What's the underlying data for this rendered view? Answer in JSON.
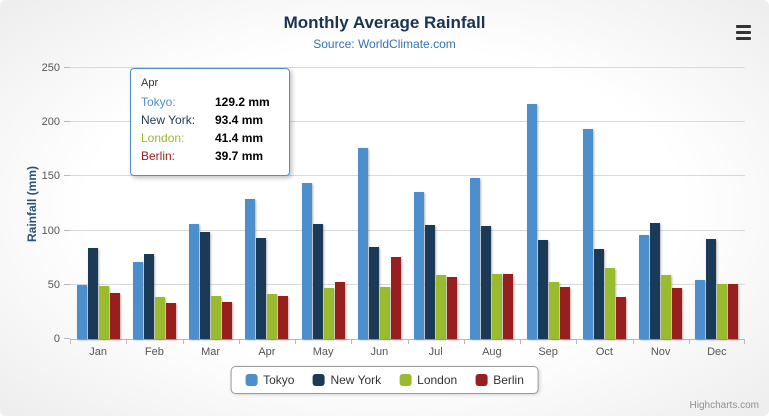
{
  "header": {
    "title": "Monthly Average Rainfall",
    "subtitle": "Source: WorldClimate.com"
  },
  "chart_data": {
    "type": "bar",
    "title": "Monthly Average Rainfall",
    "subtitle": "Source: WorldClimate.com",
    "categories": [
      "Jan",
      "Feb",
      "Mar",
      "Apr",
      "May",
      "Jun",
      "Jul",
      "Aug",
      "Sep",
      "Oct",
      "Nov",
      "Dec"
    ],
    "series": [
      {
        "name": "Tokyo",
        "color": "#4d8fcc",
        "values": [
          49.9,
          71.5,
          106.4,
          129.2,
          144.0,
          176.0,
          135.6,
          148.5,
          216.4,
          194.1,
          95.6,
          54.4
        ]
      },
      {
        "name": "New York",
        "color": "#1b3a57",
        "values": [
          83.6,
          78.8,
          98.5,
          93.4,
          106.0,
          84.5,
          105.0,
          104.3,
          91.2,
          83.5,
          106.6,
          92.3
        ]
      },
      {
        "name": "London",
        "color": "#9bbb2e",
        "values": [
          48.9,
          38.8,
          39.3,
          41.4,
          47.0,
          48.3,
          59.0,
          59.6,
          52.4,
          65.2,
          59.3,
          51.2
        ]
      },
      {
        "name": "Berlin",
        "color": "#97201f",
        "values": [
          42.4,
          33.2,
          34.5,
          39.7,
          52.6,
          75.5,
          57.4,
          60.4,
          47.6,
          39.1,
          46.8,
          51.1
        ]
      }
    ],
    "xlabel": "",
    "ylabel": "Rainfall (mm)",
    "ylim": [
      0,
      250
    ],
    "yticks": [
      0,
      50,
      100,
      150,
      200,
      250
    ],
    "grid": true,
    "legend_position": "bottom"
  },
  "tooltip": {
    "category": "Apr",
    "rows": [
      {
        "series": "Tokyo",
        "value": "129.2 mm"
      },
      {
        "series": "New York",
        "value": "93.4 mm"
      },
      {
        "series": "London",
        "value": "41.4 mm"
      },
      {
        "series": "Berlin",
        "value": "39.7 mm"
      }
    ]
  },
  "credits": "Highcharts.com"
}
